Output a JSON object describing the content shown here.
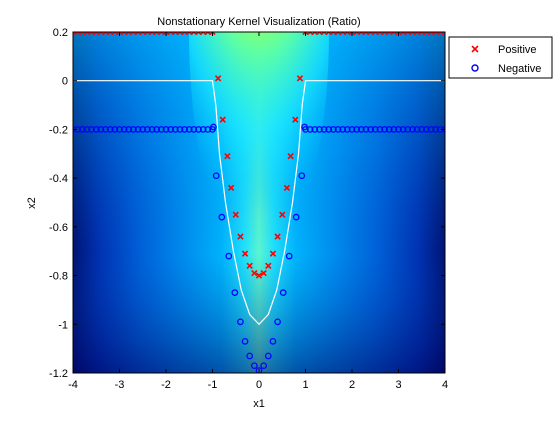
{
  "chart_data": {
    "type": "scatter",
    "title": "Nonstationary Kernel Visualization (Ratio)",
    "xlabel": "x1",
    "ylabel": "x2",
    "xlim": [
      -4,
      4
    ],
    "ylim": [
      -1.2,
      0.2
    ],
    "xticks": [
      "-4",
      "-3",
      "-2",
      "-1",
      "0",
      "1",
      "2",
      "3",
      "4"
    ],
    "yticks": [
      "0.2",
      "0",
      "-0.2",
      "-0.4",
      "-0.6",
      "-0.8",
      "-1",
      "-1.2"
    ],
    "legend": {
      "placement": "outside-top-right",
      "entries": [
        "Positive",
        "Negative"
      ]
    },
    "background": "filled contour (jet colormap)",
    "decision_boundary_color": "#ffffff",
    "series": [
      {
        "name": "Positive",
        "marker": "x",
        "color": "#ff0000",
        "points": [
          [
            -4.0,
            0.2
          ],
          [
            -3.9,
            0.2
          ],
          [
            -3.8,
            0.2
          ],
          [
            -3.7,
            0.2
          ],
          [
            -3.6,
            0.2
          ],
          [
            -3.5,
            0.2
          ],
          [
            -3.4,
            0.2
          ],
          [
            -3.3,
            0.2
          ],
          [
            -3.2,
            0.2
          ],
          [
            -3.1,
            0.2
          ],
          [
            -3.0,
            0.2
          ],
          [
            -2.9,
            0.2
          ],
          [
            -2.8,
            0.2
          ],
          [
            -2.7,
            0.2
          ],
          [
            -2.6,
            0.2
          ],
          [
            -2.5,
            0.2
          ],
          [
            -2.4,
            0.2
          ],
          [
            -2.3,
            0.2
          ],
          [
            -2.2,
            0.2
          ],
          [
            -2.1,
            0.2
          ],
          [
            -2.0,
            0.2
          ],
          [
            -1.9,
            0.2
          ],
          [
            -1.8,
            0.2
          ],
          [
            -1.7,
            0.2
          ],
          [
            -1.6,
            0.2
          ],
          [
            -1.5,
            0.2
          ],
          [
            -1.4,
            0.2
          ],
          [
            -1.3,
            0.2
          ],
          [
            -1.2,
            0.2
          ],
          [
            -1.1,
            0.2
          ],
          [
            -1.0,
            0.2
          ],
          [
            1.0,
            0.2
          ],
          [
            1.1,
            0.2
          ],
          [
            1.2,
            0.2
          ],
          [
            1.3,
            0.2
          ],
          [
            1.4,
            0.2
          ],
          [
            1.5,
            0.2
          ],
          [
            1.6,
            0.2
          ],
          [
            1.7,
            0.2
          ],
          [
            1.8,
            0.2
          ],
          [
            1.9,
            0.2
          ],
          [
            2.0,
            0.2
          ],
          [
            2.1,
            0.2
          ],
          [
            2.2,
            0.2
          ],
          [
            2.3,
            0.2
          ],
          [
            2.4,
            0.2
          ],
          [
            2.5,
            0.2
          ],
          [
            2.6,
            0.2
          ],
          [
            2.7,
            0.2
          ],
          [
            2.8,
            0.2
          ],
          [
            2.9,
            0.2
          ],
          [
            3.0,
            0.2
          ],
          [
            3.1,
            0.2
          ],
          [
            3.2,
            0.2
          ],
          [
            3.3,
            0.2
          ],
          [
            3.4,
            0.2
          ],
          [
            3.5,
            0.2
          ],
          [
            3.6,
            0.2
          ],
          [
            3.7,
            0.2
          ],
          [
            3.8,
            0.2
          ],
          [
            3.9,
            0.2
          ],
          [
            4.0,
            0.2
          ],
          [
            -0.88,
            0.01
          ],
          [
            -0.78,
            -0.16
          ],
          [
            -0.68,
            -0.31
          ],
          [
            -0.6,
            -0.44
          ],
          [
            -0.5,
            -0.55
          ],
          [
            -0.4,
            -0.64
          ],
          [
            -0.3,
            -0.71
          ],
          [
            -0.2,
            -0.76
          ],
          [
            -0.1,
            -0.79
          ],
          [
            0.0,
            -0.8
          ],
          [
            0.1,
            -0.79
          ],
          [
            0.2,
            -0.76
          ],
          [
            0.3,
            -0.71
          ],
          [
            0.4,
            -0.64
          ],
          [
            0.5,
            -0.55
          ],
          [
            0.6,
            -0.44
          ],
          [
            0.68,
            -0.31
          ],
          [
            0.78,
            -0.16
          ],
          [
            0.88,
            0.01
          ]
        ]
      },
      {
        "name": "Negative",
        "marker": "o",
        "color": "#0000ff",
        "points": [
          [
            -4.0,
            -0.2
          ],
          [
            -3.9,
            -0.2
          ],
          [
            -3.8,
            -0.2
          ],
          [
            -3.7,
            -0.2
          ],
          [
            -3.6,
            -0.2
          ],
          [
            -3.5,
            -0.2
          ],
          [
            -3.4,
            -0.2
          ],
          [
            -3.3,
            -0.2
          ],
          [
            -3.2,
            -0.2
          ],
          [
            -3.1,
            -0.2
          ],
          [
            -3.0,
            -0.2
          ],
          [
            -2.9,
            -0.2
          ],
          [
            -2.8,
            -0.2
          ],
          [
            -2.7,
            -0.2
          ],
          [
            -2.6,
            -0.2
          ],
          [
            -2.5,
            -0.2
          ],
          [
            -2.4,
            -0.2
          ],
          [
            -2.3,
            -0.2
          ],
          [
            -2.2,
            -0.2
          ],
          [
            -2.1,
            -0.2
          ],
          [
            -2.0,
            -0.2
          ],
          [
            -1.9,
            -0.2
          ],
          [
            -1.8,
            -0.2
          ],
          [
            -1.7,
            -0.2
          ],
          [
            -1.6,
            -0.2
          ],
          [
            -1.5,
            -0.2
          ],
          [
            -1.4,
            -0.2
          ],
          [
            -1.3,
            -0.2
          ],
          [
            -1.2,
            -0.2
          ],
          [
            -1.1,
            -0.2
          ],
          [
            -1.0,
            -0.2
          ],
          [
            1.0,
            -0.2
          ],
          [
            1.1,
            -0.2
          ],
          [
            1.2,
            -0.2
          ],
          [
            1.3,
            -0.2
          ],
          [
            1.4,
            -0.2
          ],
          [
            1.5,
            -0.2
          ],
          [
            1.6,
            -0.2
          ],
          [
            1.7,
            -0.2
          ],
          [
            1.8,
            -0.2
          ],
          [
            1.9,
            -0.2
          ],
          [
            2.0,
            -0.2
          ],
          [
            2.1,
            -0.2
          ],
          [
            2.2,
            -0.2
          ],
          [
            2.3,
            -0.2
          ],
          [
            2.4,
            -0.2
          ],
          [
            2.5,
            -0.2
          ],
          [
            2.6,
            -0.2
          ],
          [
            2.7,
            -0.2
          ],
          [
            2.8,
            -0.2
          ],
          [
            2.9,
            -0.2
          ],
          [
            3.0,
            -0.2
          ],
          [
            3.1,
            -0.2
          ],
          [
            3.2,
            -0.2
          ],
          [
            3.3,
            -0.2
          ],
          [
            3.4,
            -0.2
          ],
          [
            3.5,
            -0.2
          ],
          [
            3.6,
            -0.2
          ],
          [
            3.7,
            -0.2
          ],
          [
            3.8,
            -0.2
          ],
          [
            3.9,
            -0.2
          ],
          [
            4.0,
            -0.2
          ],
          [
            -0.98,
            -0.19
          ],
          [
            -0.92,
            -0.39
          ],
          [
            -0.8,
            -0.56
          ],
          [
            -0.65,
            -0.72
          ],
          [
            -0.52,
            -0.87
          ],
          [
            -0.4,
            -0.99
          ],
          [
            -0.3,
            -1.07
          ],
          [
            -0.2,
            -1.13
          ],
          [
            -0.1,
            -1.17
          ],
          [
            0.0,
            -1.19
          ],
          [
            0.1,
            -1.17
          ],
          [
            0.2,
            -1.13
          ],
          [
            0.3,
            -1.07
          ],
          [
            0.4,
            -0.99
          ],
          [
            0.52,
            -0.87
          ],
          [
            0.65,
            -0.72
          ],
          [
            0.8,
            -0.56
          ],
          [
            0.92,
            -0.39
          ],
          [
            0.98,
            -0.19
          ]
        ]
      }
    ]
  }
}
